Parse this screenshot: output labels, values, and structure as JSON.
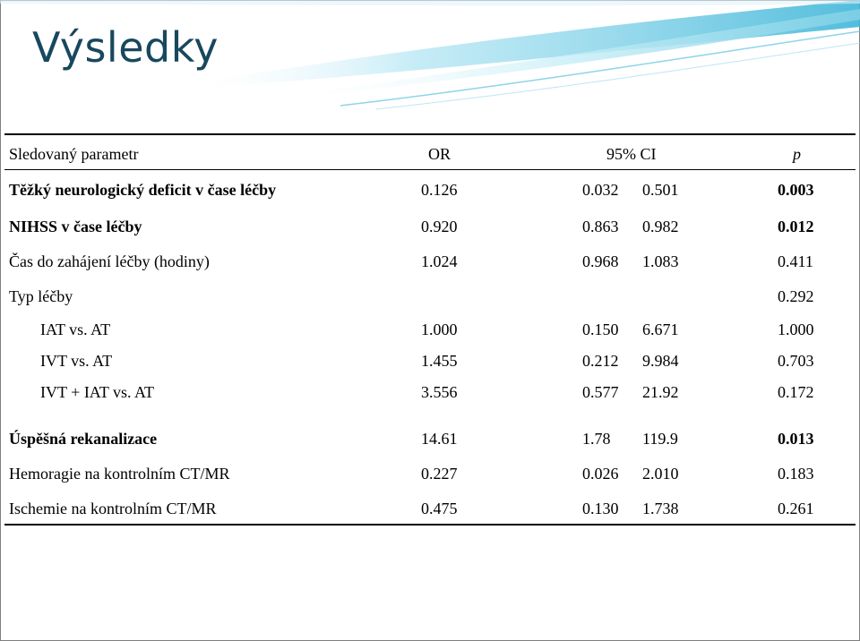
{
  "slide": {
    "title": "Výsledky",
    "accent_color": "#17485e"
  },
  "table": {
    "headers": {
      "param": "Sledovaný parametr",
      "or": "OR",
      "ci": "95% CI",
      "p": "p"
    },
    "rows": [
      {
        "param": "Těžký neurologický deficit v čase léčby",
        "or": "0.126",
        "ci_low": "0.032",
        "ci_high": "0.501",
        "p": "0.003",
        "bold": true
      },
      {
        "param": "NIHSS v čase léčby",
        "or": "0.920",
        "ci_low": "0.863",
        "ci_high": "0.982",
        "p": "0.012",
        "bold": true
      },
      {
        "param": "Čas do zahájení léčby (hodiny)",
        "or": "1.024",
        "ci_low": "0.968",
        "ci_high": "1.083",
        "p": "0.411",
        "bold": false
      },
      {
        "param": "Typ léčby",
        "or": "",
        "ci_low": "",
        "ci_high": "",
        "p": "0.292",
        "bold": false
      },
      {
        "param": "IAT vs. AT",
        "or": "1.000",
        "ci_low": "0.150",
        "ci_high": "6.671",
        "p": "1.000",
        "bold": false,
        "sub": true
      },
      {
        "param": "IVT vs. AT",
        "or": "1.455",
        "ci_low": "0.212",
        "ci_high": "9.984",
        "p": "0.703",
        "bold": false,
        "sub": true
      },
      {
        "param": "IVT + IAT vs. AT",
        "or": "3.556",
        "ci_low": "0.577",
        "ci_high": "21.92",
        "p": "0.172",
        "bold": false,
        "sub": true
      },
      {
        "param": "Úspěšná rekanalizace",
        "or": "14.61",
        "ci_low": "1.78",
        "ci_high": "119.9",
        "p": "0.013",
        "bold": true
      },
      {
        "param": "Hemoragie na kontrolním CT/MR",
        "or": "0.227",
        "ci_low": "0.026",
        "ci_high": "2.010",
        "p": "0.183",
        "bold": false
      },
      {
        "param": "Ischemie na kontrolním CT/MR",
        "or": "0.475",
        "ci_low": "0.130",
        "ci_high": "1.738",
        "p": "0.261",
        "bold": false
      }
    ]
  }
}
